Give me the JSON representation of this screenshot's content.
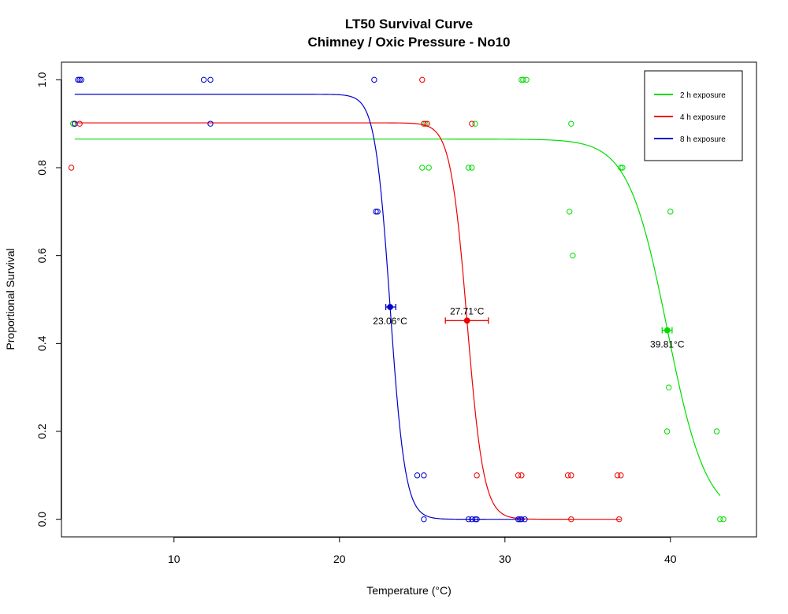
{
  "chart_data": {
    "type": "scatter",
    "title": "LT50 Survival Curve",
    "subtitle": "Chimney / Oxic Pressure - No10",
    "xlabel": "Temperature (°C)",
    "ylabel": "Proportional Survival",
    "xlim": [
      3.2,
      45.2
    ],
    "ylim": [
      -0.04,
      1.04
    ],
    "x_ticks": [
      10,
      20,
      30,
      40
    ],
    "y_ticks": [
      0.0,
      0.2,
      0.4,
      0.6,
      0.8,
      1.0
    ],
    "x_tick_labels": [
      "10",
      "20",
      "30",
      "40"
    ],
    "y_tick_labels": [
      "0.0",
      "0.2",
      "0.4",
      "0.6",
      "0.8",
      "1.0"
    ],
    "grid": false,
    "legend_position": "top-right",
    "series": [
      {
        "name": "2 h exposure",
        "color": "#00dd00",
        "fit": {
          "top": 0.865,
          "lt50": 39.81,
          "slope": 0.85,
          "x_range": [
            4.0,
            43.0
          ]
        },
        "lt50_marker": {
          "x": 39.81,
          "y": 0.43,
          "ci": [
            39.5,
            40.1
          ],
          "label": "39.81°C"
        },
        "points": [
          [
            3.9,
            0.9
          ],
          [
            4.0,
            0.9
          ],
          [
            25.0,
            0.8
          ],
          [
            25.4,
            0.8
          ],
          [
            25.2,
            0.9
          ],
          [
            27.8,
            0.8
          ],
          [
            28.0,
            0.8
          ],
          [
            28.2,
            0.9
          ],
          [
            31.0,
            1.0
          ],
          [
            31.1,
            1.0
          ],
          [
            31.3,
            1.0
          ],
          [
            33.9,
            0.7
          ],
          [
            34.0,
            0.9
          ],
          [
            34.1,
            0.6
          ],
          [
            37.0,
            0.8
          ],
          [
            37.1,
            0.8
          ],
          [
            39.8,
            0.2
          ],
          [
            39.9,
            0.3
          ],
          [
            40.0,
            0.7
          ],
          [
            42.8,
            0.2
          ],
          [
            43.0,
            0.0
          ],
          [
            43.2,
            0.0
          ]
        ]
      },
      {
        "name": "4 h exposure",
        "color": "#ee0000",
        "fit": {
          "top": 0.902,
          "lt50": 27.71,
          "slope": 2.0,
          "x_range": [
            4.0,
            37.0
          ]
        },
        "lt50_marker": {
          "x": 27.71,
          "y": 0.452,
          "ci": [
            26.4,
            29.0
          ],
          "label": "27.71°C"
        },
        "points": [
          [
            3.8,
            0.8
          ],
          [
            4.0,
            0.9
          ],
          [
            4.3,
            0.9
          ],
          [
            25.0,
            1.0
          ],
          [
            25.1,
            0.9
          ],
          [
            25.3,
            0.9
          ],
          [
            28.0,
            0.9
          ],
          [
            28.3,
            0.1
          ],
          [
            30.8,
            0.1
          ],
          [
            31.0,
            0.1
          ],
          [
            33.8,
            0.1
          ],
          [
            34.0,
            0.1
          ],
          [
            34.0,
            0.0
          ],
          [
            36.8,
            0.1
          ],
          [
            37.0,
            0.1
          ],
          [
            36.9,
            0.0
          ]
        ]
      },
      {
        "name": "8 h exposure",
        "color": "#0000cc",
        "fit": {
          "top": 0.967,
          "lt50": 23.06,
          "slope": 2.2,
          "x_range": [
            4.0,
            31.2
          ]
        },
        "lt50_marker": {
          "x": 23.06,
          "y": 0.483,
          "ci": [
            22.8,
            23.4
          ],
          "label": "23.06°C"
        },
        "points": [
          [
            4.0,
            0.9
          ],
          [
            4.2,
            1.0
          ],
          [
            4.3,
            1.0
          ],
          [
            4.4,
            1.0
          ],
          [
            11.8,
            1.0
          ],
          [
            12.2,
            1.0
          ],
          [
            12.2,
            0.9
          ],
          [
            22.1,
            1.0
          ],
          [
            22.2,
            0.7
          ],
          [
            22.3,
            0.7
          ],
          [
            24.7,
            0.1
          ],
          [
            25.1,
            0.1
          ],
          [
            25.1,
            0.0
          ],
          [
            27.8,
            0.0
          ],
          [
            28.0,
            0.0
          ],
          [
            28.2,
            0.0
          ],
          [
            28.3,
            0.0
          ],
          [
            30.8,
            0.0
          ],
          [
            30.9,
            0.0
          ],
          [
            31.0,
            0.0
          ],
          [
            31.2,
            0.0
          ]
        ]
      }
    ]
  }
}
